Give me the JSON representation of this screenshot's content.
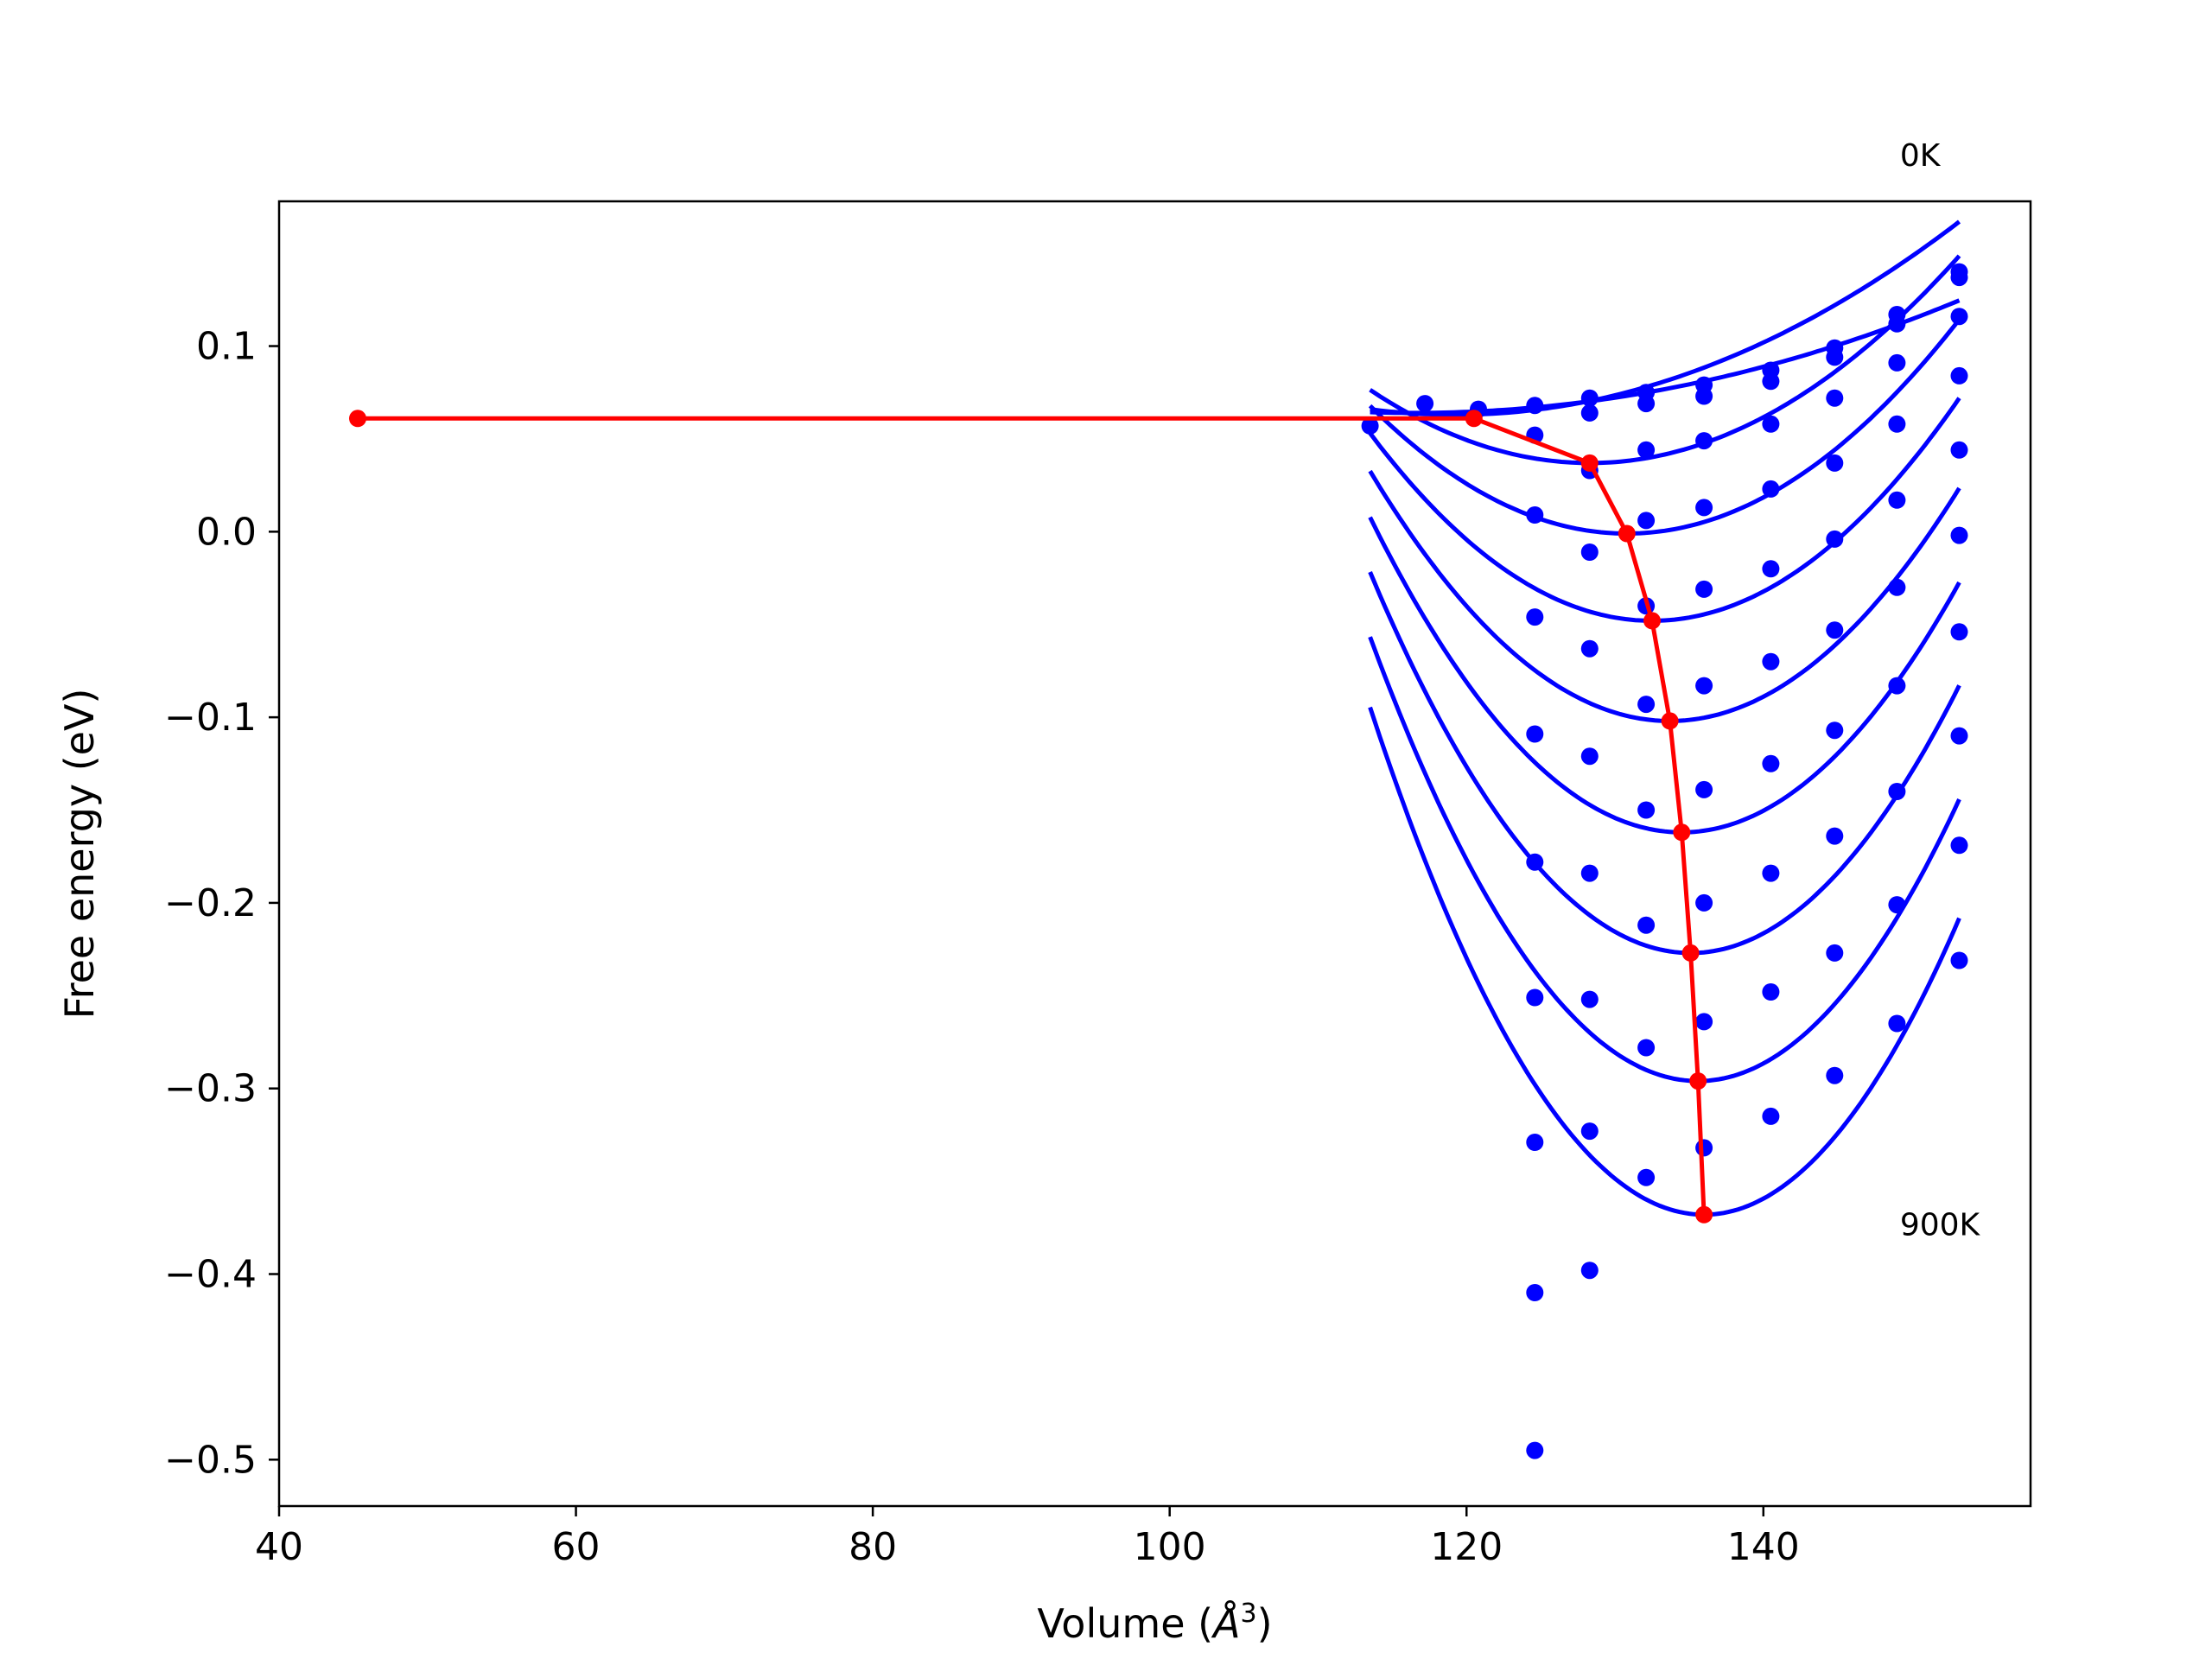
{
  "chart_data": {
    "type": "line",
    "title": "",
    "xlabel": "Volume (",
    "xlabel_unit": "Å",
    "xlabel_exp": "3",
    "xlabel_close": ")",
    "ylabel": "Free energy (eV)",
    "xlim": [
      40,
      158
    ],
    "ylim": [
      -0.525,
      0.178
    ],
    "xticks": [
      40,
      60,
      80,
      100,
      120,
      140
    ],
    "xtick_labels": [
      "40",
      "60",
      "80",
      "100",
      "120",
      "140"
    ],
    "yticks": [
      0.1,
      0.0,
      -0.1,
      -0.2,
      -0.3,
      -0.4,
      -0.5
    ],
    "ytick_labels": [
      "0.1",
      "0.0",
      "−0.1",
      "−0.2",
      "−0.3",
      "−0.4",
      "−0.5"
    ],
    "grid": false,
    "annotations": [
      {
        "text": "0K",
        "x": 149.2,
        "y": 0.197
      },
      {
        "text": "900K",
        "x": 149.2,
        "y": -0.379
      }
    ],
    "colors": {
      "fits": "#0000ff",
      "points": "#0000ff",
      "minima": "#ff0000",
      "frame": "#000000"
    },
    "fit_x_range": [
      113.5,
      153.2
    ],
    "fit_series": [
      {
        "v0": 116.5,
        "e0": 0.064,
        "b": 4.5e-05
      },
      {
        "v0": 119.2,
        "e0": 0.063,
        "b": 9e-05
      },
      {
        "v0": 128.3,
        "e0": 0.037,
        "b": 0.00018
      },
      {
        "v0": 130.8,
        "e0": -0.001,
        "b": 0.00023
      },
      {
        "v0": 132.5,
        "e0": -0.048,
        "b": 0.00028
      },
      {
        "v0": 133.7,
        "e0": -0.102,
        "b": 0.00033
      },
      {
        "v0": 134.5,
        "e0": -0.162,
        "b": 0.000385
      },
      {
        "v0": 135.1,
        "e0": -0.227,
        "b": 0.00044
      },
      {
        "v0": 135.6,
        "e0": -0.296,
        "b": 0.00049
      },
      {
        "v0": 136.0,
        "e0": -0.368,
        "b": 0.00054
      }
    ],
    "scatter_points": [
      [
        113.5,
        0.057
      ],
      [
        117.2,
        0.069
      ],
      [
        120.8,
        0.066
      ],
      [
        124.6,
        0.068
      ],
      [
        128.3,
        0.072
      ],
      [
        132.1,
        0.075
      ],
      [
        136.0,
        0.079
      ],
      [
        140.5,
        0.087
      ],
      [
        144.8,
        0.099
      ],
      [
        149.0,
        0.117
      ],
      [
        153.2,
        0.14
      ],
      [
        128.3,
        0.064
      ],
      [
        132.1,
        0.069
      ],
      [
        136.0,
        0.073
      ],
      [
        140.5,
        0.081
      ],
      [
        144.8,
        0.094
      ],
      [
        149.0,
        0.112
      ],
      [
        153.2,
        0.137
      ],
      [
        124.6,
        0.052
      ],
      [
        132.1,
        0.044
      ],
      [
        136.0,
        0.049
      ],
      [
        140.5,
        0.058
      ],
      [
        144.8,
        0.072
      ],
      [
        149.0,
        0.091
      ],
      [
        153.2,
        0.116
      ],
      [
        124.6,
        0.009
      ],
      [
        128.3,
        0.033
      ],
      [
        132.1,
        0.006
      ],
      [
        136.0,
        0.013
      ],
      [
        140.5,
        0.023
      ],
      [
        144.8,
        0.037
      ],
      [
        149.0,
        0.058
      ],
      [
        153.2,
        0.084
      ],
      [
        128.3,
        -0.011
      ],
      [
        144.8,
        -0.004
      ],
      [
        149.0,
        0.017
      ],
      [
        153.2,
        0.044
      ],
      [
        124.6,
        -0.046
      ],
      [
        132.1,
        -0.04
      ],
      [
        136.0,
        -0.031
      ],
      [
        140.5,
        -0.02
      ],
      [
        153.2,
        -0.002
      ],
      [
        128.3,
        -0.063
      ],
      [
        144.8,
        -0.053
      ],
      [
        149.0,
        -0.03
      ],
      [
        153.2,
        -0.054
      ],
      [
        132.1,
        -0.093
      ],
      [
        136.0,
        -0.083
      ],
      [
        140.5,
        -0.07
      ],
      [
        149.0,
        -0.083
      ],
      [
        124.6,
        -0.109
      ],
      [
        128.3,
        -0.121
      ],
      [
        140.5,
        -0.125
      ],
      [
        144.8,
        -0.107
      ],
      [
        153.2,
        -0.11
      ],
      [
        132.1,
        -0.15
      ],
      [
        136.0,
        -0.139
      ],
      [
        149.0,
        -0.14
      ],
      [
        124.6,
        -0.178
      ],
      [
        128.3,
        -0.184
      ],
      [
        140.5,
        -0.184
      ],
      [
        144.8,
        -0.164
      ],
      [
        153.2,
        -0.169
      ],
      [
        132.1,
        -0.212
      ],
      [
        136.0,
        -0.2
      ],
      [
        149.0,
        -0.201
      ],
      [
        124.6,
        -0.251
      ],
      [
        128.3,
        -0.252
      ],
      [
        136.0,
        -0.264
      ],
      [
        140.5,
        -0.248
      ],
      [
        144.8,
        -0.227
      ],
      [
        153.2,
        -0.231
      ],
      [
        132.1,
        -0.278
      ],
      [
        149.0,
        -0.265
      ],
      [
        124.6,
        -0.329
      ],
      [
        128.3,
        -0.323
      ],
      [
        136.0,
        -0.332
      ],
      [
        140.5,
        -0.315
      ],
      [
        144.8,
        -0.293
      ],
      [
        132.1,
        -0.348
      ],
      [
        124.6,
        -0.41
      ],
      [
        128.3,
        -0.398
      ],
      [
        124.6,
        -0.495
      ]
    ],
    "minima_path": [
      [
        45.3,
        0.061
      ],
      [
        113.5,
        0.061
      ],
      [
        120.5,
        0.061
      ],
      [
        128.3,
        0.037
      ],
      [
        130.8,
        -0.001
      ],
      [
        132.5,
        -0.048
      ],
      [
        133.7,
        -0.102
      ],
      [
        134.5,
        -0.162
      ],
      [
        135.1,
        -0.227
      ],
      [
        135.6,
        -0.296
      ],
      [
        136.0,
        -0.368
      ]
    ]
  }
}
